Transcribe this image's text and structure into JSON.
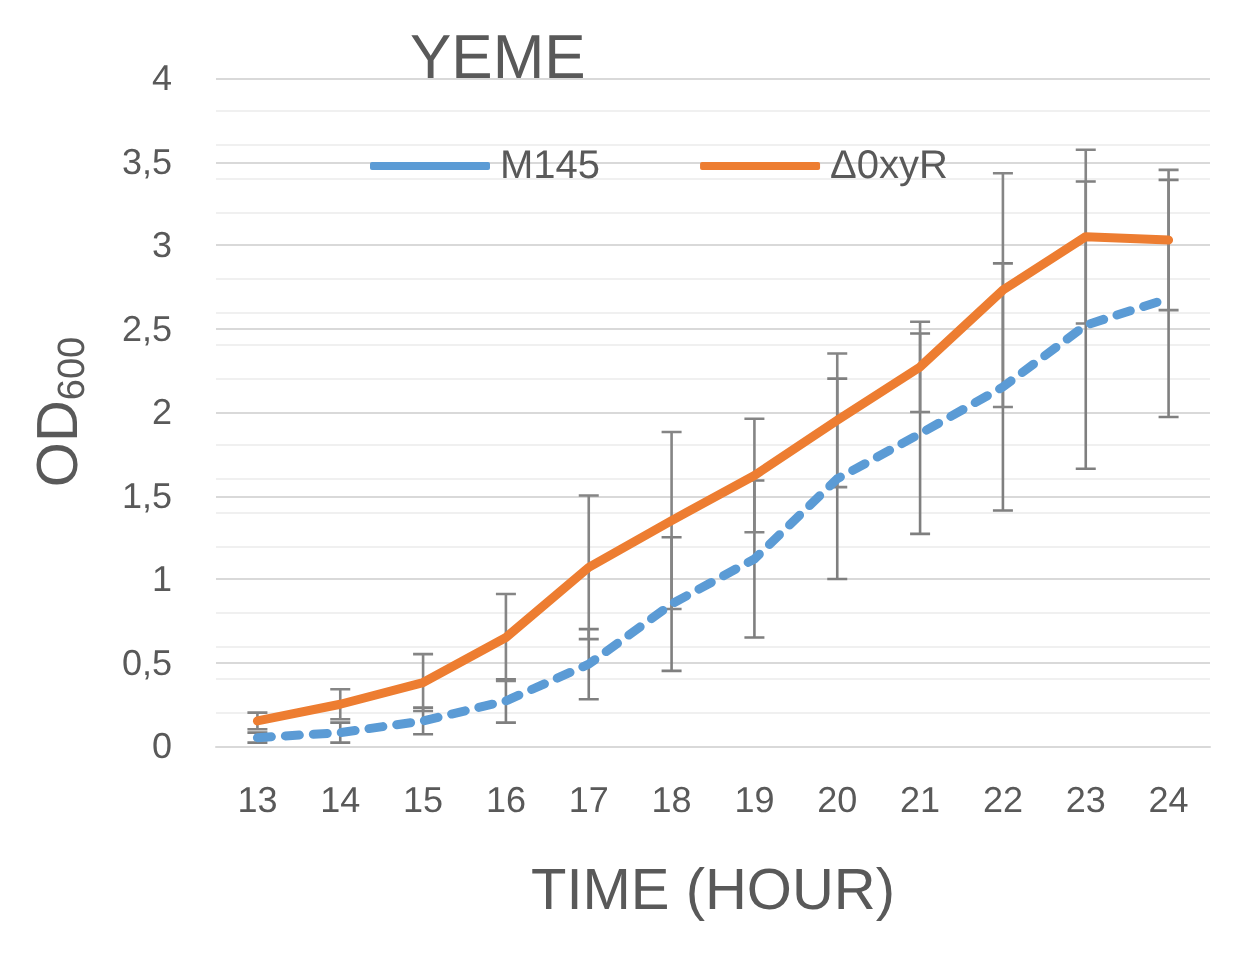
{
  "chart_data": {
    "type": "line",
    "title": "YEME",
    "xlabel": "TIME (HOUR)",
    "ylabel": "OD$_{600}$",
    "categories": [
      "13",
      "14",
      "15",
      "16",
      "17",
      "18",
      "19",
      "20",
      "21",
      "22",
      "23",
      "24"
    ],
    "series": [
      {
        "name": "M145",
        "color": "#5b9bd5",
        "line_style": "dashed",
        "values": [
          0.05,
          0.08,
          0.15,
          0.27,
          0.49,
          0.85,
          1.12,
          1.6,
          1.87,
          2.15,
          2.52,
          2.68
        ],
        "errors": [
          0.03,
          0.06,
          0.08,
          0.13,
          0.21,
          0.4,
          0.47,
          0.6,
          0.6,
          0.74,
          0.86,
          0.71
        ]
      },
      {
        "name": "Δ0xyR",
        "color": "#ed7d31",
        "line_style": "solid",
        "values": [
          0.15,
          0.25,
          0.38,
          0.65,
          1.07,
          1.35,
          1.62,
          1.95,
          2.27,
          2.73,
          3.05,
          3.03
        ],
        "errors": [
          0.05,
          0.09,
          0.17,
          0.26,
          0.43,
          0.53,
          0.34,
          0.4,
          0.27,
          0.7,
          0.52,
          0.42
        ]
      }
    ],
    "ylim": [
      0,
      4
    ],
    "yticks": [
      0,
      {
        "value": 0.5,
        "label": "0,5"
      },
      1,
      {
        "value": 1.5,
        "label": "1,5"
      },
      2,
      {
        "value": 2.5,
        "label": "2,5"
      },
      3,
      {
        "value": 3.5,
        "label": "3,5"
      },
      4
    ],
    "grid": "y",
    "legend": "top",
    "marker": "none"
  }
}
